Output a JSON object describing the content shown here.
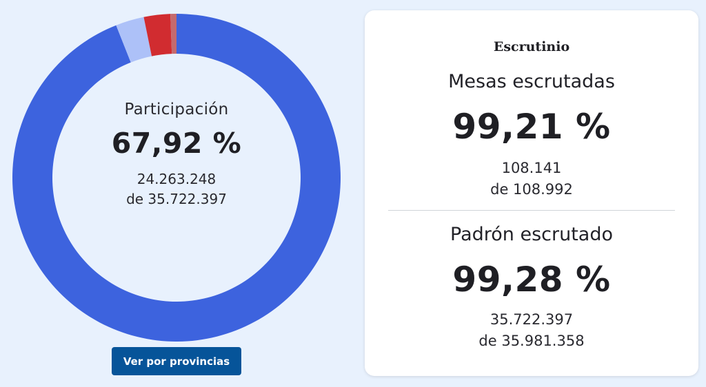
{
  "participation": {
    "title": "Participación",
    "percent": "67,92 %",
    "votes": "24.263.248",
    "of_total": "de 35.722.397"
  },
  "chart_data": {
    "type": "pie",
    "variant": "donut",
    "slices": [
      {
        "value": 94.0,
        "color": "#3d63de"
      },
      {
        "value": 2.8,
        "color": "#adc1f8"
      },
      {
        "value": 2.6,
        "color": "#d12c30"
      },
      {
        "value": 0.6,
        "color": "#c56a6e"
      }
    ]
  },
  "provinces_button": {
    "label": "Ver por provincias"
  },
  "scrutiny": {
    "title": "Escrutinio",
    "tables": {
      "label": "Mesas escrutadas",
      "percent": "99,21 %",
      "count": "108.141",
      "of_total": "de 108.992"
    },
    "census": {
      "label": "Padrón escrutado",
      "percent": "99,28 %",
      "count": "35.722.397",
      "of_total": "de 35.981.358"
    }
  }
}
